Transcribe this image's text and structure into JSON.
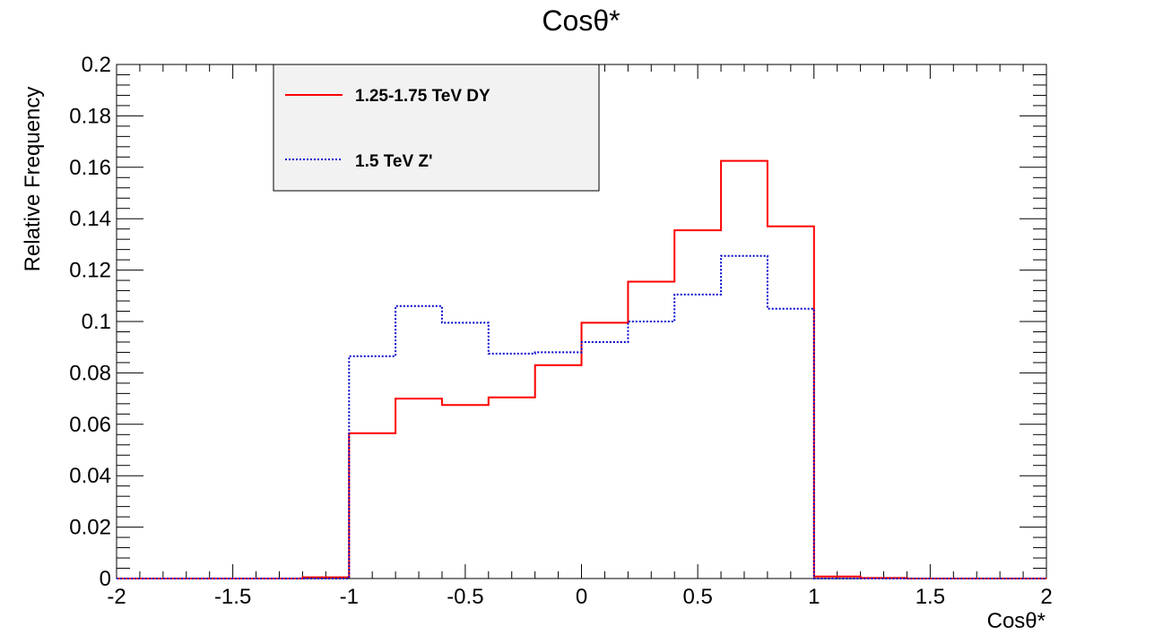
{
  "chart_data": {
    "type": "step-histogram",
    "title": "Cosθ*",
    "xlabel": "Cosθ*",
    "ylabel": "Relative Frequency",
    "xlim": [
      -2,
      2
    ],
    "ylim": [
      0,
      0.2
    ],
    "x_ticks": [
      -2,
      -1.5,
      -1,
      -0.5,
      0,
      0.5,
      1,
      1.5,
      2
    ],
    "x_tick_labels": [
      "-2",
      "-1.5",
      "-1",
      "-0.5",
      "0",
      "0.5",
      "1",
      "1.5",
      "2"
    ],
    "y_ticks": [
      0,
      0.02,
      0.04,
      0.06,
      0.08,
      0.1,
      0.12,
      0.14,
      0.16,
      0.18,
      0.2
    ],
    "y_tick_labels": [
      "0",
      "0.02",
      "0.04",
      "0.06",
      "0.08",
      "0.1",
      "0.12",
      "0.14",
      "0.16",
      "0.18",
      "0.2"
    ],
    "grid": false,
    "legend_position": "top-left",
    "bin_edges": [
      -2,
      -1.8,
      -1.6,
      -1.4,
      -1.2,
      -1,
      -0.8,
      -0.6,
      -0.4,
      -0.2,
      0,
      0.2,
      0.4,
      0.6,
      0.8,
      1,
      1.2,
      1.4,
      1.6,
      1.8,
      2
    ],
    "series": [
      {
        "name": "1.25-1.75 TeV DY",
        "color": "#ff0000",
        "line_style": "solid",
        "values": [
          0,
          0,
          0,
          0,
          0.0005,
          0.0565,
          0.07,
          0.0675,
          0.0705,
          0.083,
          0.0995,
          0.1155,
          0.1355,
          0.1625,
          0.137,
          0.0008,
          0.0002,
          0,
          0,
          0
        ]
      },
      {
        "name": "1.5 TeV Z'",
        "color": "#0000cc",
        "line_style": "dotted",
        "values": [
          0,
          0,
          0,
          0,
          0,
          0.0865,
          0.106,
          0.0995,
          0.0875,
          0.088,
          0.092,
          0.1,
          0.1105,
          0.1255,
          0.105,
          0,
          0,
          0,
          0,
          0
        ]
      }
    ]
  }
}
